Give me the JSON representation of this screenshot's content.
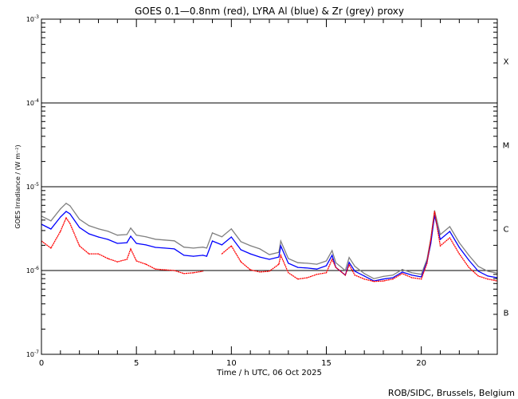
{
  "chart_data": {
    "type": "line",
    "title": "GOES 0.1—0.8nm (red), LYRA Al (blue) & Zr (grey) proxy",
    "xlabel": "Time / h UTC, 06 Oct 2025",
    "ylabel": "GOES Irradiance / (W m⁻²)",
    "xlim": [
      0,
      24
    ],
    "ylim": [
      1e-07,
      0.001
    ],
    "yscale": "log",
    "x_ticks": [
      "0",
      "5",
      "10",
      "15",
      "20"
    ],
    "y_ticks": [
      {
        "base": "10",
        "exp": "-3",
        "value": 0.001
      },
      {
        "base": "10",
        "exp": "-4",
        "value": 0.0001
      },
      {
        "base": "10",
        "exp": "-5",
        "value": 1e-05
      },
      {
        "base": "10",
        "exp": "-6",
        "value": 1e-06
      },
      {
        "base": "10",
        "exp": "-7",
        "value": 1e-07
      }
    ],
    "flare_classes": [
      {
        "label": "X",
        "range": [
          0.0001,
          0.001
        ]
      },
      {
        "label": "M",
        "range": [
          1e-05,
          0.0001
        ]
      },
      {
        "label": "C",
        "range": [
          1e-06,
          1e-05
        ]
      },
      {
        "label": "B",
        "range": [
          1e-07,
          1e-06
        ]
      }
    ],
    "class_lines": [
      0.0001,
      1e-05,
      1e-06
    ],
    "x": [
      0,
      0.5,
      1,
      1.3,
      1.5,
      2,
      2.5,
      3,
      3.5,
      4,
      4.5,
      4.7,
      5,
      5.5,
      6,
      6.5,
      7,
      7.5,
      8,
      8.5,
      8.7,
      9,
      9.5,
      10,
      10.5,
      11,
      11.5,
      12,
      12.5,
      12.6,
      13,
      13.5,
      14,
      14.5,
      15,
      15.3,
      15.5,
      16,
      16.2,
      16.5,
      17,
      17.5,
      18,
      18.5,
      19,
      19.5,
      20,
      20.3,
      20.5,
      20.7,
      21,
      21.5,
      22,
      22.5,
      23,
      23.5,
      24
    ],
    "series": [
      {
        "name": "LYRA Zr proxy (grey)",
        "color": "#808080",
        "values": [
          4.46e-06,
          3.91e-06,
          5.44e-06,
          6.34e-06,
          5.93e-06,
          4.09e-06,
          3.43e-06,
          3.14e-06,
          2.94e-06,
          2.64e-06,
          2.69e-06,
          3.21e-06,
          2.64e-06,
          2.53e-06,
          2.36e-06,
          2.31e-06,
          2.26e-06,
          1.9e-06,
          1.85e-06,
          1.9e-06,
          1.85e-06,
          2.81e-06,
          2.53e-06,
          3.14e-06,
          2.21e-06,
          1.98e-06,
          1.81e-06,
          1.55e-06,
          1.65e-06,
          2.25e-06,
          1.39e-06,
          1.24e-06,
          1.22e-06,
          1.19e-06,
          1.3e-06,
          1.73e-06,
          1.24e-06,
          1e-06,
          1.43e-06,
          1.12e-06,
          9.2e-07,
          8e-07,
          8.5e-07,
          8.8e-07,
          1.03e-06,
          9.4e-07,
          9e-07,
          1.36e-06,
          2.41e-06,
          5.18e-06,
          2.68e-06,
          3.34e-06,
          2.15e-06,
          1.52e-06,
          1.12e-06,
          9.8e-07,
          9.3e-07
        ]
      },
      {
        "name": "LYRA Al proxy (blue)",
        "color": "#0000ff",
        "values": [
          3.57e-06,
          3.13e-06,
          4.35e-06,
          5.07e-06,
          4.74e-06,
          3.27e-06,
          2.74e-06,
          2.51e-06,
          2.35e-06,
          2.11e-06,
          2.15e-06,
          2.57e-06,
          2.11e-06,
          2.02e-06,
          1.89e-06,
          1.85e-06,
          1.81e-06,
          1.52e-06,
          1.48e-06,
          1.52e-06,
          1.48e-06,
          2.25e-06,
          2.02e-06,
          2.51e-06,
          1.77e-06,
          1.58e-06,
          1.45e-06,
          1.36e-06,
          1.45e-06,
          1.97e-06,
          1.22e-06,
          1.09e-06,
          1.07e-06,
          1.04e-06,
          1.14e-06,
          1.52e-06,
          1.09e-06,
          8.8e-07,
          1.25e-06,
          9.8e-07,
          8.6e-07,
          7.5e-07,
          7.9e-07,
          8.2e-07,
          9.6e-07,
          8.8e-07,
          8.4e-07,
          1.27e-06,
          2.11e-06,
          4.54e-06,
          2.35e-06,
          2.93e-06,
          1.89e-06,
          1.33e-06,
          9.8e-07,
          8.6e-07,
          8.2e-07
        ]
      },
      {
        "name": "GOES 0.1-0.8nm (red)",
        "color": "#ff0000",
        "values": [
          2.25e-06,
          1.85e-06,
          2.93e-06,
          4.25e-06,
          3.65e-06,
          1.97e-06,
          1.58e-06,
          1.58e-06,
          1.39e-06,
          1.27e-06,
          1.36e-06,
          1.81e-06,
          1.3e-06,
          1.19e-06,
          1.04e-06,
          1.02e-06,
          1e-06,
          9.2e-07,
          9.4e-07,
          9.8e-07,
          null,
          null,
          1.58e-06,
          1.97e-06,
          1.27e-06,
          1.02e-06,
          9.6e-07,
          9.8e-07,
          1.19e-06,
          1.52e-06,
          9.4e-07,
          7.9e-07,
          8.2e-07,
          9e-07,
          9.4e-07,
          1.36e-06,
          1.09e-06,
          8.8e-07,
          1.17e-06,
          8.8e-07,
          7.9e-07,
          7.4e-07,
          7.5e-07,
          7.9e-07,
          9.2e-07,
          8.2e-07,
          7.9e-07,
          1.22e-06,
          2.35e-06,
          5.07e-06,
          1.97e-06,
          2.46e-06,
          1.58e-06,
          1.09e-06,
          8.6e-07,
          7.9e-07,
          7.5e-07
        ]
      }
    ],
    "grid": false,
    "legend": "in title"
  },
  "footer": "ROB/SIDC, Brussels, Belgium"
}
